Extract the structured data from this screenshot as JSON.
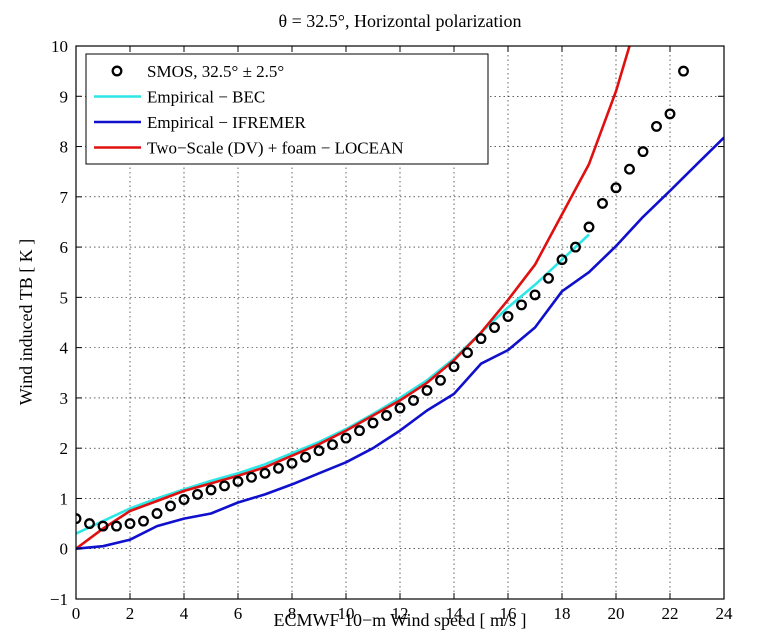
{
  "chart_data": {
    "type": "line",
    "title": "θ = 32.5°, Horizontal polarization",
    "xlabel": "ECMWF 10−m Wind speed [ m/s ]",
    "ylabel": "Wind induced TB [ K ]",
    "xlim": [
      0,
      24
    ],
    "ylim": [
      -1,
      10
    ],
    "xticks": [
      0,
      2,
      4,
      6,
      8,
      10,
      12,
      14,
      16,
      18,
      20,
      22,
      24
    ],
    "yticks": [
      -1,
      0,
      1,
      2,
      3,
      4,
      5,
      6,
      7,
      8,
      9,
      10
    ],
    "xtick_labels": [
      "0",
      "2",
      "4",
      "6",
      "8",
      "10",
      "12",
      "14",
      "16",
      "18",
      "20",
      "22",
      "24"
    ],
    "ytick_labels": [
      "−1",
      "0",
      "1",
      "2",
      "3",
      "4",
      "5",
      "6",
      "7",
      "8",
      "9",
      "10"
    ],
    "grid": true,
    "legend_position": "top-left",
    "series": [
      {
        "name": "SMOS, 32.5° ± 2.5°",
        "style": "markers",
        "color": "#000000",
        "x": [
          0,
          0.5,
          1,
          1.5,
          2,
          2.5,
          3,
          3.5,
          4,
          4.5,
          5,
          5.5,
          6,
          6.5,
          7,
          7.5,
          8,
          8.5,
          9,
          9.5,
          10,
          10.5,
          11,
          11.5,
          12,
          12.5,
          13,
          13.5,
          14,
          14.5,
          15,
          15.5,
          16,
          16.5,
          17,
          17.5,
          18,
          18.5,
          19,
          19.5,
          20,
          20.5,
          21,
          21.5,
          22,
          22.5
        ],
        "y": [
          0.6,
          0.5,
          0.45,
          0.45,
          0.5,
          0.55,
          0.7,
          0.85,
          0.98,
          1.08,
          1.17,
          1.25,
          1.34,
          1.42,
          1.5,
          1.6,
          1.7,
          1.82,
          1.95,
          2.07,
          2.2,
          2.35,
          2.5,
          2.65,
          2.8,
          2.95,
          3.15,
          3.35,
          3.62,
          3.9,
          4.18,
          4.4,
          4.62,
          4.85,
          5.05,
          5.38,
          5.75,
          6.0,
          6.4,
          6.87,
          7.18,
          7.55,
          7.9,
          8.4,
          8.65,
          9.5
        ]
      },
      {
        "name": "Empirical − BEC",
        "style": "line",
        "color": "#2de6e6",
        "x": [
          0,
          1,
          2,
          3,
          4,
          5,
          6,
          7,
          8,
          9,
          10,
          11,
          12,
          13,
          14,
          15,
          16,
          17,
          18,
          19
        ],
        "y": [
          0.3,
          0.55,
          0.8,
          1.0,
          1.18,
          1.35,
          1.5,
          1.68,
          1.9,
          2.12,
          2.38,
          2.68,
          3.0,
          3.35,
          3.78,
          4.3,
          4.8,
          5.25,
          5.75,
          6.25
        ]
      },
      {
        "name": "Empirical − IFREMER",
        "style": "line",
        "color": "#1010cc",
        "x": [
          0,
          1,
          2,
          3,
          4,
          5,
          6,
          7,
          8,
          9,
          10,
          11,
          12,
          13,
          14,
          15,
          16,
          17,
          18,
          19,
          20,
          21,
          22,
          23,
          24
        ],
        "y": [
          0,
          0.05,
          0.18,
          0.45,
          0.6,
          0.7,
          0.92,
          1.08,
          1.28,
          1.5,
          1.72,
          2.0,
          2.35,
          2.75,
          3.08,
          3.68,
          3.95,
          4.4,
          5.12,
          5.5,
          6.02,
          6.6,
          7.12,
          7.65,
          8.18
        ]
      },
      {
        "name": "Two−Scale (DV) + foam − LOCEAN",
        "style": "line",
        "color": "#e01010",
        "x": [
          0,
          1,
          2,
          3,
          4,
          5,
          6,
          7,
          8,
          9,
          10,
          11,
          12,
          13,
          14,
          15,
          16,
          17,
          18,
          19,
          20,
          20.5
        ],
        "y": [
          0,
          0.4,
          0.75,
          0.95,
          1.15,
          1.3,
          1.45,
          1.62,
          1.85,
          2.08,
          2.35,
          2.65,
          2.95,
          3.3,
          3.75,
          4.3,
          4.95,
          5.65,
          6.65,
          7.65,
          9.1,
          10.0
        ]
      }
    ]
  }
}
